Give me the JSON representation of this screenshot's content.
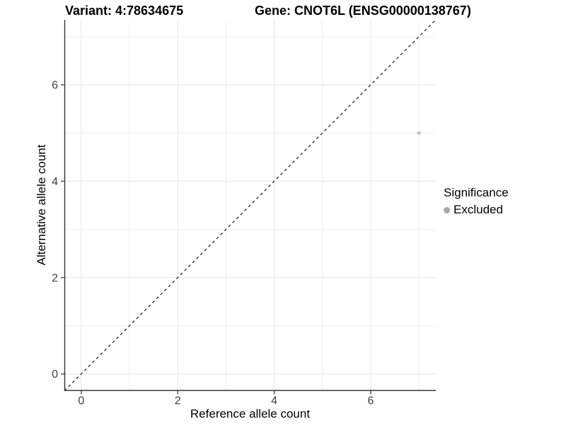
{
  "titles": {
    "variant_title": "Variant: 4:78634675",
    "gene_title": "Gene: CNOT6L (ENSG00000138767)"
  },
  "chart_data": {
    "type": "scatter",
    "xlabel": "Reference allele count",
    "ylabel": "Alternative allele count",
    "xlim": [
      -0.35,
      7.35
    ],
    "ylim": [
      -0.35,
      7.35
    ],
    "xticks": [
      0,
      2,
      4,
      6
    ],
    "yticks": [
      0,
      2,
      4,
      6
    ],
    "x_minor_ticks": [
      1,
      3,
      5,
      7
    ],
    "y_minor_ticks": [
      1,
      3,
      5,
      7
    ],
    "grid": "major and minor, no panel border, left/bottom axis lines only",
    "reference_line": {
      "kind": "identity y=x",
      "dashed": true,
      "color": "#000000"
    },
    "series": [
      {
        "name": "Excluded",
        "color": "#bdbdbd",
        "point_radius": 2.5,
        "points": [
          [
            7,
            5
          ]
        ]
      }
    ],
    "legend": {
      "title": "Significance",
      "position": "right",
      "items": [
        {
          "label": "Excluded",
          "color": "#a6a6a6"
        }
      ]
    },
    "colors": {
      "axis_line": "#333333",
      "tick_mark": "#333333",
      "tick_label": "#404040",
      "grid_major": "#e5e5e5",
      "grid_minor": "#f0f0f0",
      "background": "#ffffff"
    }
  }
}
